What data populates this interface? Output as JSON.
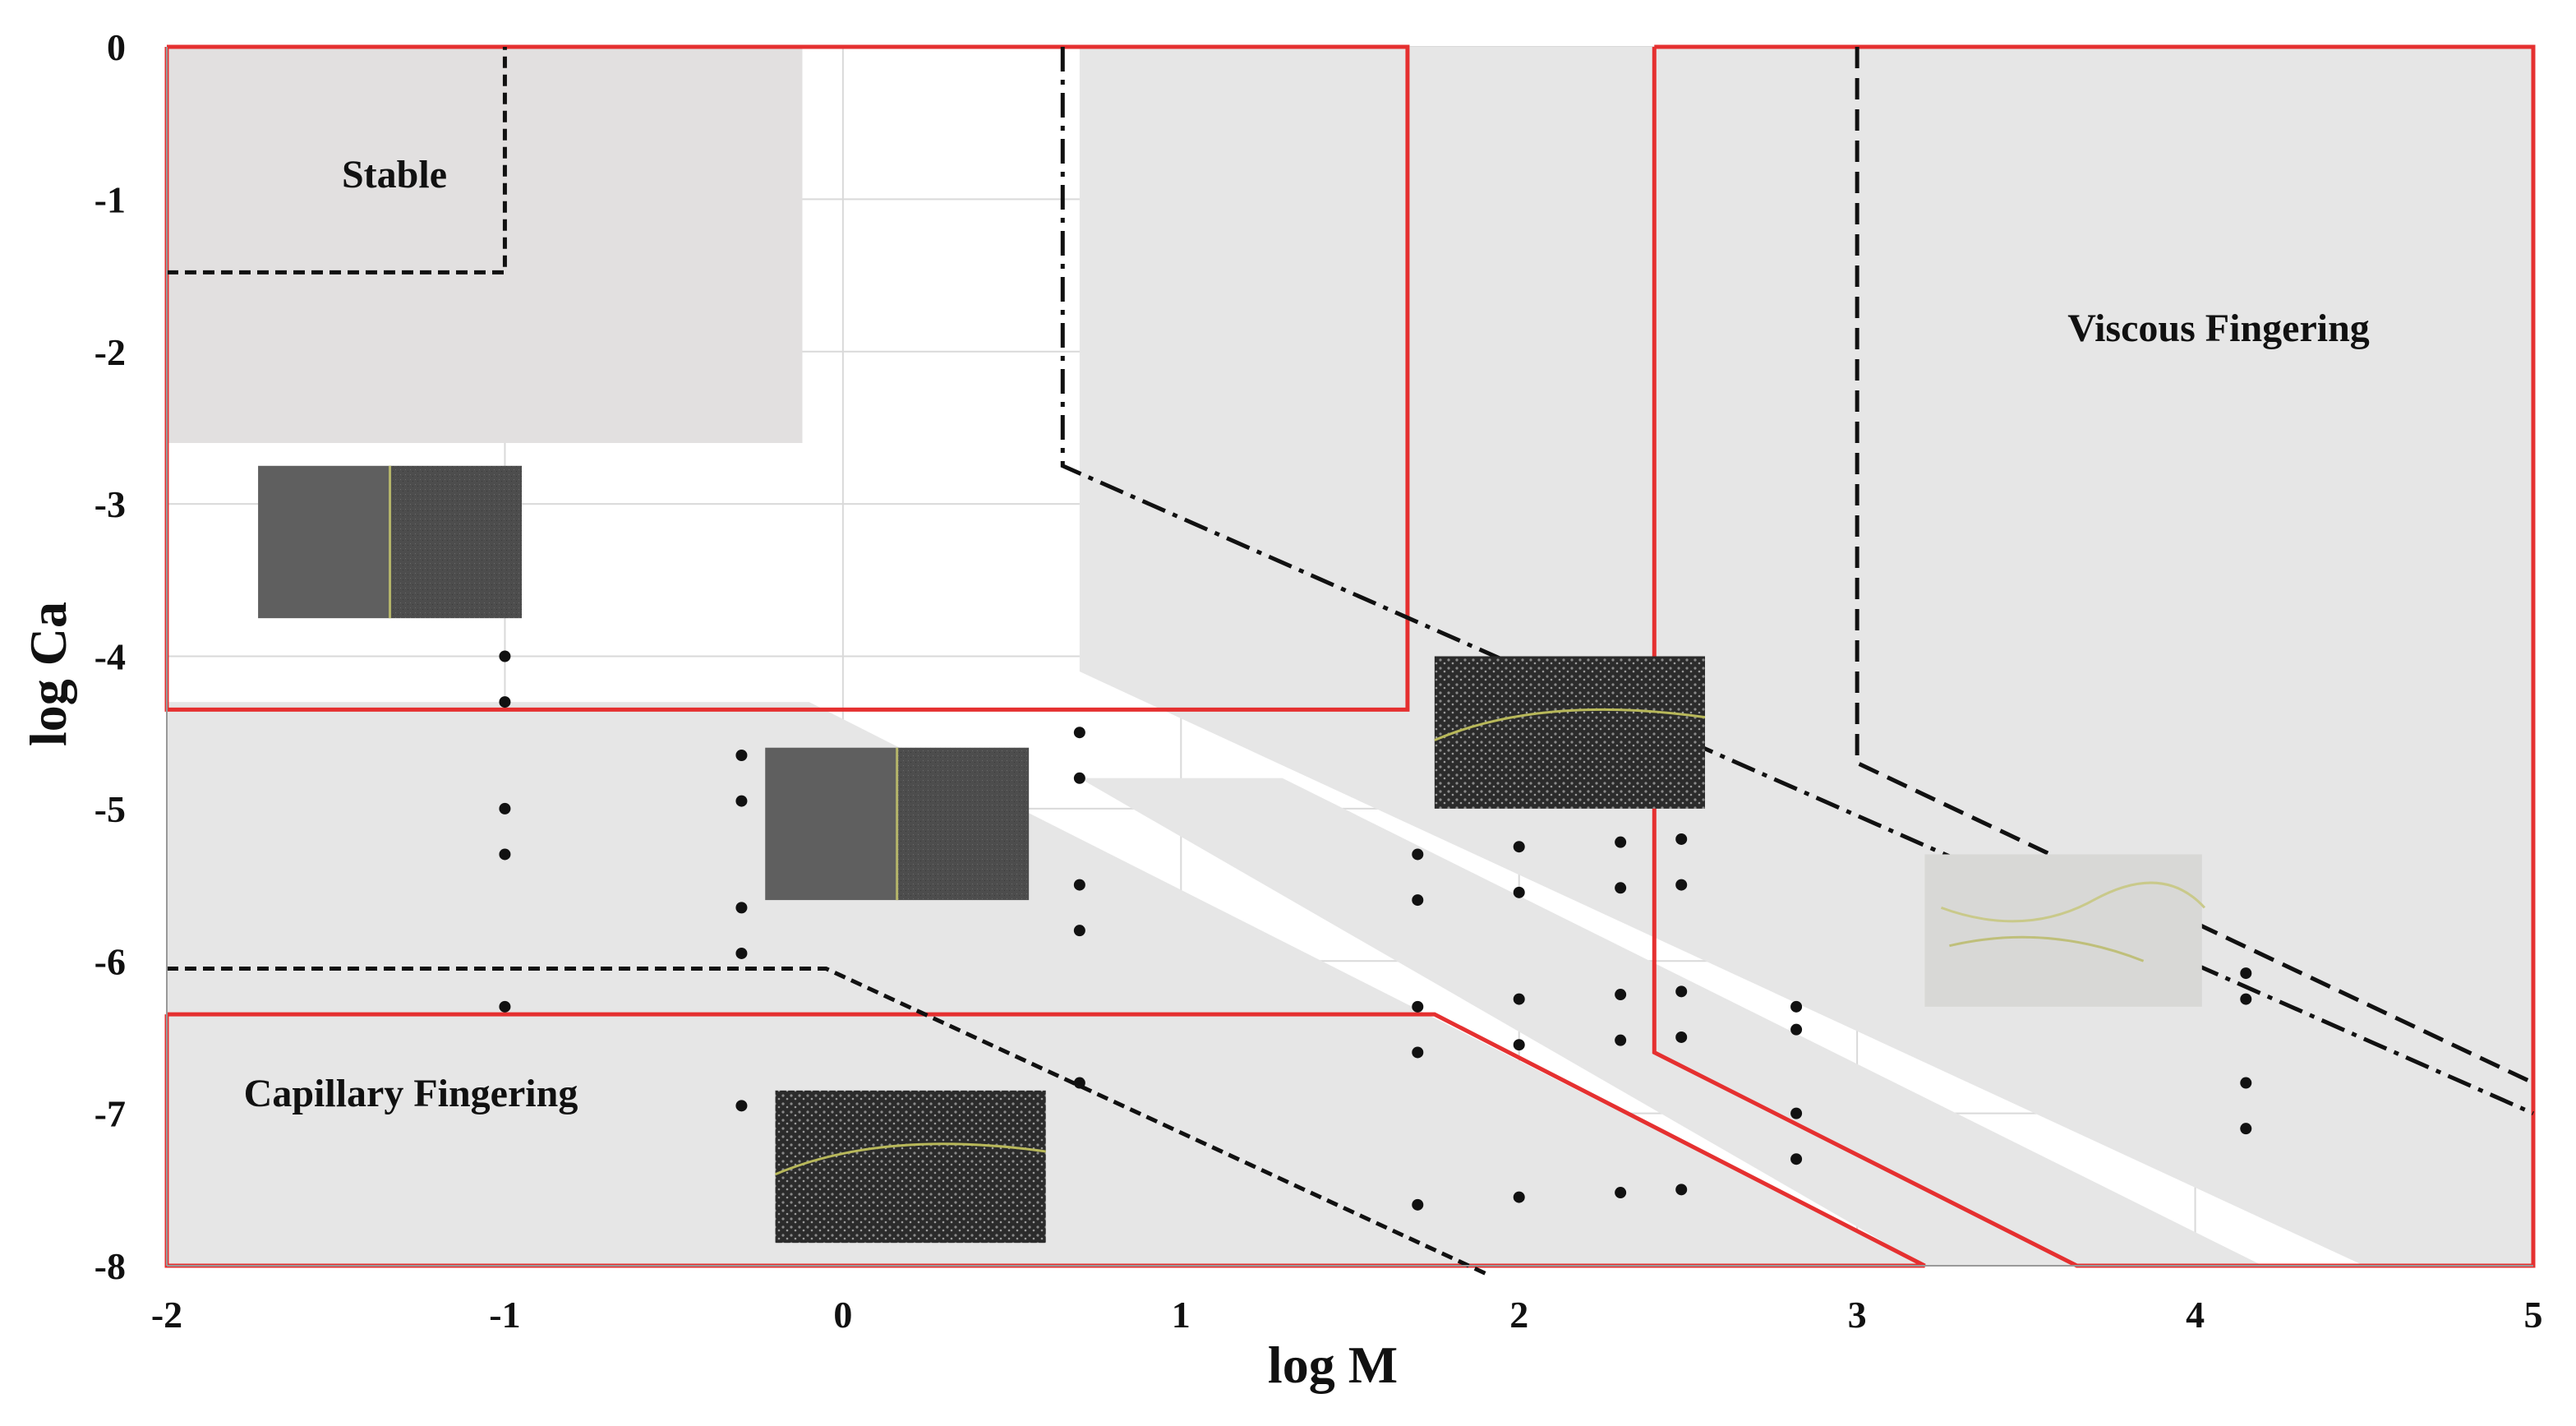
{
  "chart_data": {
    "type": "scatter",
    "xlabel": "log M",
    "ylabel": "log Ca",
    "xlim": [
      -2,
      5
    ],
    "ylim": [
      -8,
      0
    ],
    "x_ticks": [
      "-2",
      "-1",
      "0",
      "1",
      "2",
      "3",
      "4",
      "5"
    ],
    "y_ticks": [
      "0",
      "-1",
      "-2",
      "-3",
      "-4",
      "-5",
      "-6",
      "-7",
      "-8"
    ],
    "grid": true,
    "annotations": [
      "Stable",
      "Viscous Fingering",
      "Capillary Fingering"
    ],
    "colors": {
      "region_fill": "#e6e6e6",
      "stable_fill": "#e2e0e0",
      "boundary": "#e53030",
      "dashed_boundary": "#111111",
      "points": "#111111"
    },
    "regions": [
      {
        "label": "Stable",
        "polygon": [
          [
            -2,
            0
          ],
          [
            -0.12,
            0
          ],
          [
            -0.12,
            -2.6
          ],
          [
            -2,
            -2.6
          ]
        ]
      },
      {
        "label": "Viscous Fingering",
        "polygon": [
          [
            0.7,
            0
          ],
          [
            5,
            0
          ],
          [
            5,
            -8
          ],
          [
            4.5,
            -8
          ],
          [
            0.7,
            -4.1
          ]
        ]
      },
      {
        "label": "Capillary Fingering",
        "polygon": [
          [
            -2,
            -4.3
          ],
          [
            -0.1,
            -4.3
          ],
          [
            3.2,
            -8
          ],
          [
            -2,
            -8
          ]
        ]
      },
      {
        "label": "",
        "polygon": [
          [
            0.7,
            -4.8
          ],
          [
            1.3,
            -4.8
          ],
          [
            4.2,
            -8
          ],
          [
            3.2,
            -8
          ]
        ]
      }
    ],
    "red_boundaries": [
      {
        "points": [
          [
            -2,
            0
          ],
          [
            1.67,
            0
          ],
          [
            1.67,
            -4.35
          ],
          [
            -2,
            -4.35
          ],
          [
            -2,
            0
          ]
        ]
      },
      {
        "points": [
          [
            2.4,
            0
          ],
          [
            5,
            0
          ],
          [
            5,
            -8
          ],
          [
            3.65,
            -8
          ],
          [
            2.4,
            -6.6
          ],
          [
            2.4,
            0
          ]
        ]
      },
      {
        "points": [
          [
            -2,
            -6.35
          ],
          [
            1.75,
            -6.35
          ],
          [
            3.2,
            -8
          ],
          [
            -2,
            -8
          ],
          [
            -2,
            -6.35
          ]
        ]
      }
    ],
    "dashed_boundaries": [
      {
        "style": "short-dash",
        "points": [
          [
            -2,
            -1.48
          ],
          [
            -1,
            -1.48
          ],
          [
            -1,
            0
          ]
        ]
      },
      {
        "style": "short-dash",
        "points": [
          [
            -2,
            -6.05
          ],
          [
            -0.05,
            -6.05
          ],
          [
            1.9,
            -8.05
          ]
        ]
      },
      {
        "style": "dash-dot",
        "points": [
          [
            0.65,
            0
          ],
          [
            0.65,
            -2.75
          ],
          [
            5,
            -7
          ]
        ]
      },
      {
        "style": "long-dash",
        "points": [
          [
            3,
            0
          ],
          [
            3,
            -4.7
          ],
          [
            5,
            -6.8
          ]
        ]
      }
    ],
    "series": [
      {
        "x": [
          -1,
          -1,
          -1,
          -1,
          -1,
          -0.3,
          -0.3,
          -0.3,
          -0.3,
          -0.3,
          0.7,
          0.7,
          0.7,
          0.7,
          0.7,
          1.7,
          1.7,
          1.7,
          1.7,
          1.7,
          2,
          2,
          2,
          2,
          2,
          2.3,
          2.3,
          2.3,
          2.3,
          2.3,
          2.48,
          2.48,
          2.48,
          2.48,
          2.48,
          2.82,
          2.82,
          2.82,
          2.82,
          4.15,
          4.15,
          4.15,
          4.15
        ],
        "y": [
          -4,
          -4.3,
          -5,
          -5.3,
          -6.3,
          -4.65,
          -4.95,
          -5.65,
          -5.95,
          -6.95,
          -4.5,
          -4.8,
          -5.5,
          -5.8,
          -6.8,
          -5.3,
          -5.6,
          -6.3,
          -6.6,
          -7.6,
          -5.25,
          -5.55,
          -6.25,
          -6.55,
          -7.55,
          -5.22,
          -5.52,
          -6.22,
          -6.52,
          -7.52,
          -5.2,
          -5.5,
          -6.2,
          -6.5,
          -7.5,
          -6.3,
          -6.45,
          -7,
          -7.3,
          -6.08,
          -6.25,
          -6.8,
          -7.1
        ]
      }
    ],
    "inset_images": [
      {
        "name": "stable-micrograph",
        "box": [
          -1.73,
          -2.75,
          -0.95,
          -3.75
        ],
        "texture": "smooth"
      },
      {
        "name": "transition-micrograph",
        "box": [
          -0.23,
          -4.6,
          0.55,
          -5.6
        ],
        "texture": "smooth"
      },
      {
        "name": "capillary-micrograph",
        "box": [
          -0.2,
          -6.85,
          0.6,
          -7.85
        ],
        "texture": "finger"
      },
      {
        "name": "viscous-micrograph-dark",
        "box": [
          1.75,
          -4,
          2.55,
          -5
        ],
        "texture": "finger"
      },
      {
        "name": "viscous-micrograph-light",
        "box": [
          3.2,
          -5.3,
          4.02,
          -6.3
        ],
        "texture": "light"
      }
    ]
  }
}
